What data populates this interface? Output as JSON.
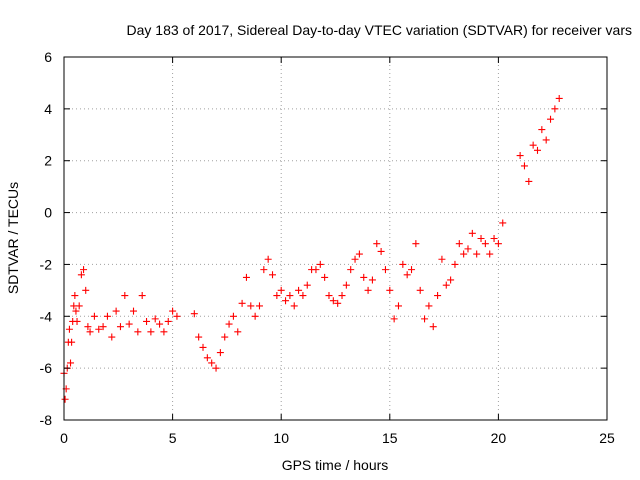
{
  "chart_data": {
    "type": "scatter",
    "title": "Day 183 of 2017, Sidereal Day-to-day VTEC variation (SDTVAR) for receiver vars",
    "xlabel": "GPS time / hours",
    "ylabel": "SDTVAR / TECUs",
    "xlim": [
      0,
      25
    ],
    "ylim": [
      -8,
      6
    ],
    "xticks": [
      0,
      5,
      10,
      15,
      20,
      25
    ],
    "yticks": [
      -8,
      -6,
      -4,
      -2,
      0,
      2,
      4,
      6
    ],
    "xtick_labels": [
      "0",
      "5",
      "10",
      "15",
      "20",
      "25"
    ],
    "ytick_labels": [
      "-8",
      "-6",
      "-4",
      "-2",
      "0",
      "2",
      "4",
      "6"
    ],
    "grid": true,
    "marker": "+",
    "series": [
      {
        "name": "SDTVAR",
        "color": "#ff0000",
        "x": [
          0.0,
          0.05,
          0.1,
          0.15,
          0.2,
          0.25,
          0.3,
          0.35,
          0.4,
          0.45,
          0.5,
          0.55,
          0.6,
          0.7,
          0.8,
          0.9,
          1.0,
          1.1,
          1.2,
          1.4,
          1.6,
          1.8,
          2.0,
          2.2,
          2.4,
          2.6,
          2.8,
          3.0,
          3.2,
          3.4,
          3.6,
          3.8,
          4.0,
          4.2,
          4.4,
          4.6,
          4.8,
          5.0,
          5.2,
          6.0,
          6.2,
          6.4,
          6.6,
          6.8,
          7.0,
          7.2,
          7.4,
          7.6,
          7.8,
          8.0,
          8.2,
          8.4,
          8.6,
          8.8,
          9.0,
          9.2,
          9.4,
          9.6,
          9.8,
          10.0,
          10.2,
          10.4,
          10.6,
          10.8,
          11.0,
          11.2,
          11.4,
          11.6,
          11.8,
          12.0,
          12.2,
          12.4,
          12.6,
          12.8,
          13.0,
          13.2,
          13.4,
          13.6,
          13.8,
          14.0,
          14.2,
          14.4,
          14.6,
          14.8,
          15.0,
          15.2,
          15.4,
          15.6,
          15.8,
          16.0,
          16.2,
          16.4,
          16.6,
          16.8,
          17.0,
          17.2,
          17.4,
          17.6,
          17.8,
          18.0,
          18.2,
          18.4,
          18.6,
          18.8,
          19.0,
          19.2,
          19.4,
          19.6,
          19.8,
          20.0,
          20.2,
          21.0,
          21.2,
          21.4,
          21.6,
          21.8,
          22.0,
          22.2,
          22.4,
          22.6,
          22.8
        ],
        "y": [
          -6.2,
          -7.2,
          -6.8,
          -6.0,
          -5.0,
          -4.5,
          -5.8,
          -5.0,
          -4.2,
          -3.6,
          -3.2,
          -3.8,
          -4.2,
          -3.6,
          -2.4,
          -2.2,
          -3.0,
          -4.4,
          -4.6,
          -4.0,
          -4.5,
          -4.4,
          -4.0,
          -4.8,
          -3.8,
          -4.4,
          -3.2,
          -4.3,
          -3.8,
          -4.6,
          -3.2,
          -4.2,
          -4.6,
          -4.1,
          -4.3,
          -4.6,
          -4.2,
          -3.8,
          -4.0,
          -3.9,
          -4.8,
          -5.2,
          -5.6,
          -5.8,
          -6.0,
          -5.4,
          -4.8,
          -4.3,
          -4.0,
          -4.6,
          -3.5,
          -2.5,
          -3.6,
          -4.0,
          -3.6,
          -2.2,
          -1.8,
          -2.4,
          -3.2,
          -3.0,
          -3.4,
          -3.2,
          -3.6,
          -3.0,
          -3.2,
          -2.8,
          -2.2,
          -2.2,
          -2.0,
          -2.5,
          -3.2,
          -3.4,
          -3.5,
          -3.2,
          -2.8,
          -2.2,
          -1.8,
          -1.6,
          -2.5,
          -3.0,
          -2.6,
          -1.2,
          -1.5,
          -2.2,
          -3.0,
          -4.1,
          -3.6,
          -2.0,
          -2.4,
          -2.2,
          -1.2,
          -3.0,
          -4.1,
          -3.6,
          -4.4,
          -3.2,
          -1.8,
          -2.8,
          -2.6,
          -2.0,
          -1.2,
          -1.6,
          -1.4,
          -0.8,
          -1.6,
          -1.0,
          -1.2,
          -1.6,
          -1.0,
          -1.2,
          -0.4,
          2.2,
          1.8,
          1.2,
          2.6,
          2.4,
          3.2,
          2.8,
          3.6,
          4.0,
          4.4
        ]
      }
    ]
  }
}
